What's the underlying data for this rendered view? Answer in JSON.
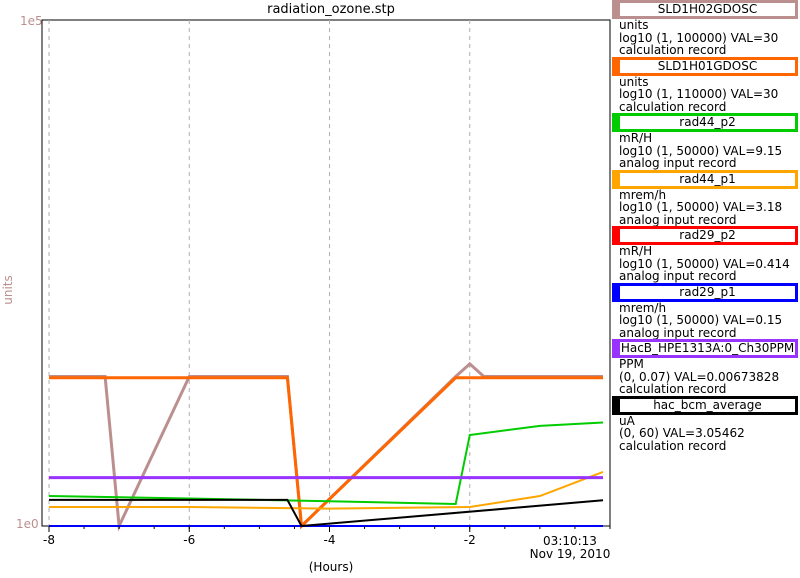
{
  "window": {
    "title": "radiation_ozone.stp"
  },
  "chart_data": {
    "type": "line",
    "title": "radiation_ozone.stp",
    "xlabel": "(Hours)",
    "ylabel": "units",
    "xlim": [
      -8.1,
      0.0
    ],
    "y_top_label": "1e5",
    "y_bottom_label": "1e0",
    "x_ticks": [
      -8,
      -6,
      -4,
      -2
    ],
    "x_tick_labels": [
      "-8",
      "-6",
      "-4",
      "-2"
    ],
    "end_time": "03:10:13",
    "end_date": "Nov 19, 2010",
    "grid": true,
    "series": [
      {
        "name": "SLD1H02GDOSC",
        "color": "#bc8f8f",
        "x": [
          -8.0,
          -7.2,
          -7.0,
          -6.0,
          -4.6,
          -4.4,
          -2.2,
          -2.0,
          -1.8,
          -0.1
        ],
        "y": [
          30,
          30,
          1,
          30,
          30,
          1,
          30,
          40,
          30,
          30
        ]
      },
      {
        "name": "SLD1H01GDOSC",
        "color": "#ff6600",
        "x": [
          -8.0,
          -7.2,
          -7.0,
          -6.0,
          -4.6,
          -4.4,
          -2.2,
          -2.0,
          -1.8,
          -0.1
        ],
        "y": [
          30,
          30,
          30,
          30,
          30,
          1,
          30,
          30,
          30,
          30
        ]
      },
      {
        "name": "rad44_p2",
        "color": "#00cc00",
        "x": [
          -8.0,
          -6.0,
          -4.0,
          -2.2,
          -2.0,
          -1.0,
          -0.1
        ],
        "y": [
          1.9,
          1.8,
          1.7,
          1.6,
          7.0,
          8.5,
          9.15
        ]
      },
      {
        "name": "rad44_p1",
        "color": "#ffa500",
        "x": [
          -8.0,
          -6.0,
          -4.0,
          -2.0,
          -1.0,
          -0.1
        ],
        "y": [
          1.5,
          1.5,
          1.45,
          1.5,
          1.9,
          3.18
        ]
      },
      {
        "name": "rad29_p2",
        "color": "#ff0000",
        "x": [
          -8.0,
          -0.1
        ],
        "y": [
          1.0,
          1.0
        ]
      },
      {
        "name": "rad29_p1",
        "color": "#0000ff",
        "x": [
          -8.0,
          -0.1
        ],
        "y": [
          1.0,
          1.0
        ]
      },
      {
        "name": "HacB_HPE1313A:0_Ch30PPM",
        "color": "#9933ff",
        "x": [
          -8.0,
          -0.1
        ],
        "y": [
          0.0067,
          0.0067
        ]
      },
      {
        "name": "hac_bcm_average",
        "color": "#000000",
        "x": [
          -8.0,
          -4.6,
          -4.4,
          -0.1
        ],
        "y": [
          3.1,
          3.1,
          0.0,
          3.05
        ]
      }
    ]
  },
  "legend": [
    {
      "name": "SLD1H02GDOSC",
      "units": "units",
      "range": "log10 (1, 100000) VAL=30",
      "type": "calculation record",
      "color": "#bc8f8f"
    },
    {
      "name": "SLD1H01GDOSC",
      "units": "units",
      "range": "log10 (1, 110000) VAL=30",
      "type": "calculation record",
      "color": "#ff6600"
    },
    {
      "name": "rad44_p2",
      "units": "mR/H",
      "range": "log10 (1, 50000) VAL=9.15",
      "type": "analog input record",
      "color": "#00cc00"
    },
    {
      "name": "rad44_p1",
      "units": "mrem/h",
      "range": "log10 (1, 50000) VAL=3.18",
      "type": "analog input record",
      "color": "#ffa500"
    },
    {
      "name": "rad29_p2",
      "units": "mR/H",
      "range": "log10 (1, 50000) VAL=0.414",
      "type": "analog input record",
      "color": "#ff0000"
    },
    {
      "name": "rad29_p1",
      "units": "mrem/h",
      "range": "log10 (1, 50000) VAL=0.15",
      "type": "analog input record",
      "color": "#0000ff"
    },
    {
      "name": "HacB_HPE1313A:0_Ch30PPM",
      "units": "PPM",
      "range": "(0, 0.07) VAL=0.00673828",
      "type": "calculation record",
      "color": "#9933ff"
    },
    {
      "name": "hac_bcm_average",
      "units": "uA",
      "range": "(0, 60) VAL=3.05462",
      "type": "calculation record",
      "color": "#000000"
    }
  ]
}
